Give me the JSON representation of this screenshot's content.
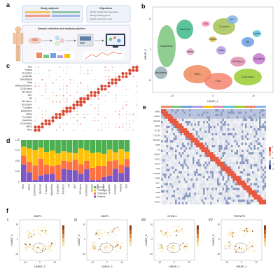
{
  "panel_labels": [
    "a",
    "b",
    "c",
    "d",
    "e",
    "f"
  ],
  "panel_a": {
    "study_subjects_title": "Study subjects",
    "objectives_title": "Objectives",
    "objectives": [
      "Identify cellular heterogeneities",
      "Identify binding genes",
      "Identify expression level"
    ],
    "pipeline_title": "Sample collection and analysis pipeline"
  },
  "panel_b": {
    "xlabel": "UMAP_1",
    "ylabel": "UMAP_2",
    "ticks_x": [
      "-10",
      "0",
      "10"
    ],
    "ticks_y": [
      "-10",
      "0",
      "10"
    ],
    "clusters": [
      {
        "label": "SMCs",
        "color": "#f08a5d"
      },
      {
        "label": "Fibro",
        "color": "#f4846e"
      },
      {
        "label": "VascEndo",
        "color": "#3fb98a"
      },
      {
        "label": "Basal/Sebo",
        "color": "#7cc47c"
      },
      {
        "label": "CD16-Mono",
        "color": "#9acd32"
      },
      {
        "label": "Mast",
        "color": "#b49ce0"
      },
      {
        "label": "NK",
        "color": "#6fa0e0"
      },
      {
        "label": "T-Lympho",
        "color": "#a6c255"
      },
      {
        "label": "Melano",
        "color": "#e7a6c8"
      },
      {
        "label": "Mesothelial",
        "color": "#9bb0b8"
      },
      {
        "label": "M2-Macro",
        "color": "#e08fb0"
      },
      {
        "label": "M1-Macro",
        "color": "#c97ad1"
      },
      {
        "label": "DCs",
        "color": "#ff9cc0"
      },
      {
        "label": "Erythro",
        "color": "#60c7d8"
      },
      {
        "label": "NKT",
        "color": "#86b6ea"
      },
      {
        "label": "Plasma",
        "color": "#d9bb4a"
      }
    ]
  },
  "panel_c": {
    "rows": [
      "DCs",
      "Plasma",
      "B-Lympho",
      "Lymphatic",
      "Sweat/Seba",
      "Mast",
      "Melano/Schwann",
      "CD16-Mono",
      "M2-Macro",
      "NKT",
      "NK",
      "M1-Macro",
      "B-Lympho",
      "T-Lympho",
      "Basal/Sebo",
      "SMCs",
      "T-Lympho",
      "VascEndo",
      "CD16-Mono",
      "SMCs",
      "Fibro"
    ]
  },
  "panel_d": {
    "yticks": [
      "1.00",
      "0.75",
      "0.50",
      "0.25",
      "0"
    ],
    "legend": [
      "Control",
      "TPA-Light",
      "TPA-Dark",
      "Patients"
    ],
    "legend_colors": [
      "#4caf50",
      "#ffc107",
      "#ff7043",
      "#7e57c2"
    ],
    "categories": [
      "Fibro",
      "SMCs",
      "CD16-Mono",
      "VascEndo",
      "T-Lympho",
      "Basal/Sebo",
      "B-Lympho",
      "M1-Macro",
      "NK",
      "NKT",
      "M2-Macro",
      "CD16-Mono",
      "Melano",
      "Mast",
      "Sweat",
      "Lymphatic",
      "B-Lympho",
      "Plasma",
      "DCs"
    ]
  },
  "panel_e": {
    "scale_ticks": [
      "2",
      "1",
      "0",
      "-1",
      "-2"
    ],
    "genes": [
      "MMP1",
      "CHI3L1",
      "TNFAIP6",
      "KRT14",
      "ACTA2",
      "COL1A1",
      "PECAM1",
      "CD3D",
      "LYZ",
      "MS4A1",
      "IGHG1",
      "CCL21",
      "DCD",
      "TPSAB1",
      "PMEL",
      "GNLY",
      "HBB",
      "CD68",
      "KRT5",
      "TAGLN"
    ]
  },
  "panel_f": {
    "plots": [
      {
        "numeral": "I",
        "gene": "MMP1"
      },
      {
        "numeral": "II",
        "gene": "MMP1"
      },
      {
        "numeral": "III",
        "gene": "CHI3L1"
      },
      {
        "numeral": "IV",
        "gene": "TNFAIP6"
      }
    ],
    "xlabel": "UMAP_1",
    "ylabel": "UMAP_2",
    "ticks_x": [
      "-10",
      "0",
      "10"
    ],
    "ticks_y": [
      "10",
      "0",
      "-10"
    ]
  },
  "colors": {
    "stack_control": "#4caf50",
    "stack_light": "#ffc107",
    "stack_dark": "#ff7043",
    "stack_patients": "#7e57c2",
    "heat_high": "#e8573f",
    "heat_low": "#3b4b8c",
    "heat_mid": "#f2f2f2",
    "feature_low": "#f3e5b0",
    "feature_high": "#8a3b12",
    "dot": "#d84a34"
  }
}
